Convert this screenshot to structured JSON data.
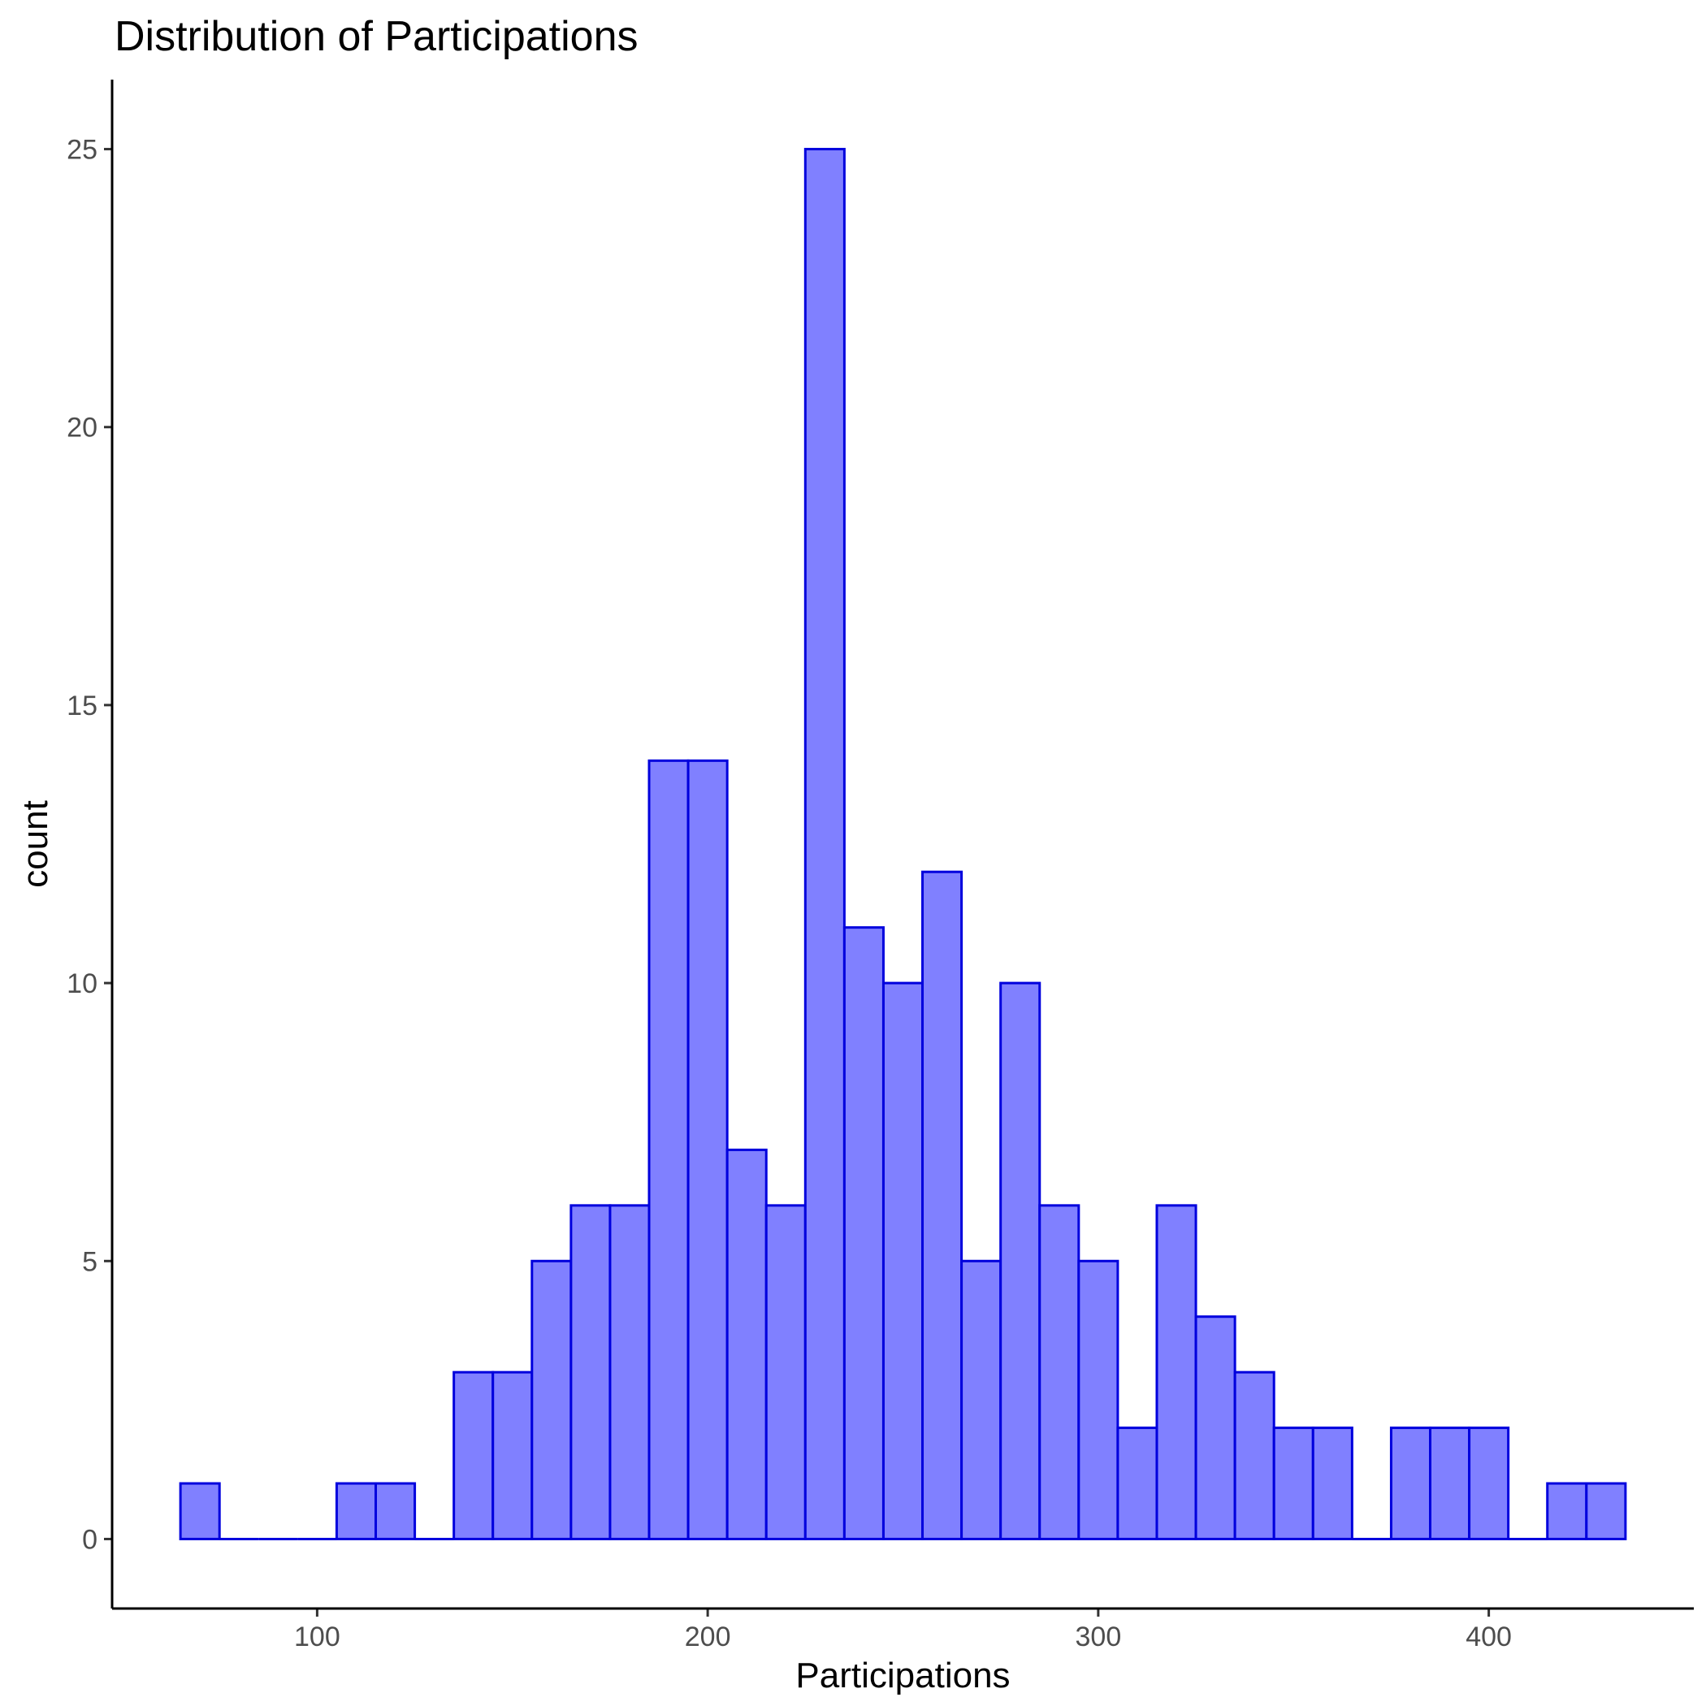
{
  "chart_data": {
    "type": "bar",
    "title": "Distribution of Participations",
    "xlabel": "Participations",
    "ylabel": "count",
    "bin_width": 10,
    "bin_starts": [
      65,
      75,
      85,
      95,
      105,
      115,
      125,
      135,
      145,
      155,
      165,
      175,
      185,
      195,
      205,
      215,
      225,
      235,
      245,
      255,
      265,
      275,
      285,
      295,
      305,
      315,
      325,
      335,
      345,
      355,
      365,
      375,
      385,
      395,
      405,
      415,
      425
    ],
    "values": [
      1,
      0,
      0,
      0,
      1,
      1,
      0,
      3,
      3,
      5,
      6,
      6,
      14,
      14,
      7,
      6,
      25,
      11,
      10,
      12,
      5,
      10,
      6,
      5,
      2,
      6,
      4,
      3,
      2,
      2,
      0,
      2,
      2,
      2,
      0,
      1,
      1
    ],
    "xlim": [
      47.5,
      452.5
    ],
    "ylim": [
      -1.25,
      26.25
    ],
    "x_ticks": [
      100,
      200,
      300,
      400
    ],
    "y_ticks": [
      0,
      5,
      10,
      15,
      20,
      25
    ],
    "fill_color": "#8080FF",
    "stroke_color": "#0000DD",
    "grid": false,
    "legend": "none"
  }
}
